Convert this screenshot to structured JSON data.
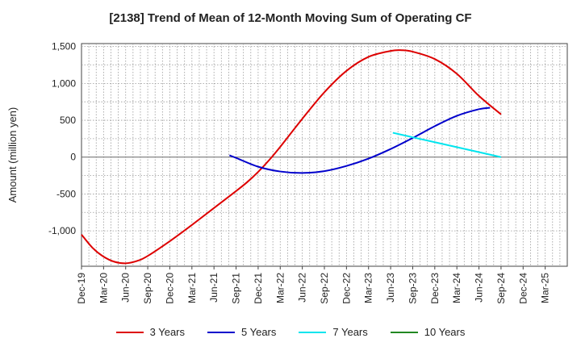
{
  "chart_data": {
    "type": "line",
    "title": "[2138]  Trend of Mean of 12-Month Moving Sum of Operating CF",
    "xlabel": "",
    "ylabel": "Amount (million yen)",
    "ylim": [
      -1480,
      1540
    ],
    "yticks": [
      -1000,
      -500,
      0,
      500,
      1000,
      1500
    ],
    "ytick_labels": [
      "-1,000",
      "-500",
      "0",
      "500",
      "1,000",
      "1,500"
    ],
    "categories": [
      "Dec-19",
      "Mar-20",
      "Jun-20",
      "Sep-20",
      "Dec-20",
      "Mar-21",
      "Jun-21",
      "Sep-21",
      "Dec-21",
      "Mar-22",
      "Jun-22",
      "Sep-22",
      "Dec-22",
      "Mar-23",
      "Jun-23",
      "Sep-23",
      "Dec-23",
      "Mar-24",
      "Jun-24",
      "Sep-24",
      "Dec-24",
      "Mar-25"
    ],
    "grid": true,
    "legend_position": "bottom",
    "series": [
      {
        "name": "3 Years",
        "color": "#dd0000",
        "points": [
          [
            0,
            -1050
          ],
          [
            0.5,
            -1230
          ],
          [
            1,
            -1350
          ],
          [
            1.5,
            -1420
          ],
          [
            2,
            -1440
          ],
          [
            2.5,
            -1410
          ],
          [
            3,
            -1340
          ],
          [
            4,
            -1140
          ],
          [
            5,
            -920
          ],
          [
            6,
            -690
          ],
          [
            7,
            -460
          ],
          [
            7.5,
            -340
          ],
          [
            8,
            -200
          ],
          [
            8.5,
            -40
          ],
          [
            9,
            140
          ],
          [
            10,
            520
          ],
          [
            11,
            880
          ],
          [
            12,
            1170
          ],
          [
            13,
            1360
          ],
          [
            14,
            1440
          ],
          [
            14.5,
            1450
          ],
          [
            15,
            1430
          ],
          [
            16,
            1330
          ],
          [
            17,
            1130
          ],
          [
            18,
            830
          ],
          [
            19,
            580
          ]
        ]
      },
      {
        "name": "5 Years",
        "color": "#0000cc",
        "points": [
          [
            6.7,
            25
          ],
          [
            7,
            -10
          ],
          [
            8,
            -130
          ],
          [
            9,
            -195
          ],
          [
            10,
            -215
          ],
          [
            11,
            -190
          ],
          [
            12,
            -120
          ],
          [
            13,
            -20
          ],
          [
            14,
            110
          ],
          [
            15,
            260
          ],
          [
            16,
            420
          ],
          [
            17,
            560
          ],
          [
            18,
            650
          ],
          [
            18.5,
            670
          ]
        ]
      },
      {
        "name": "7 Years",
        "color": "#00e5ee",
        "points": [
          [
            14.1,
            330
          ],
          [
            19,
            0
          ]
        ]
      },
      {
        "name": "10 Years",
        "color": "#228822",
        "points": []
      }
    ]
  }
}
